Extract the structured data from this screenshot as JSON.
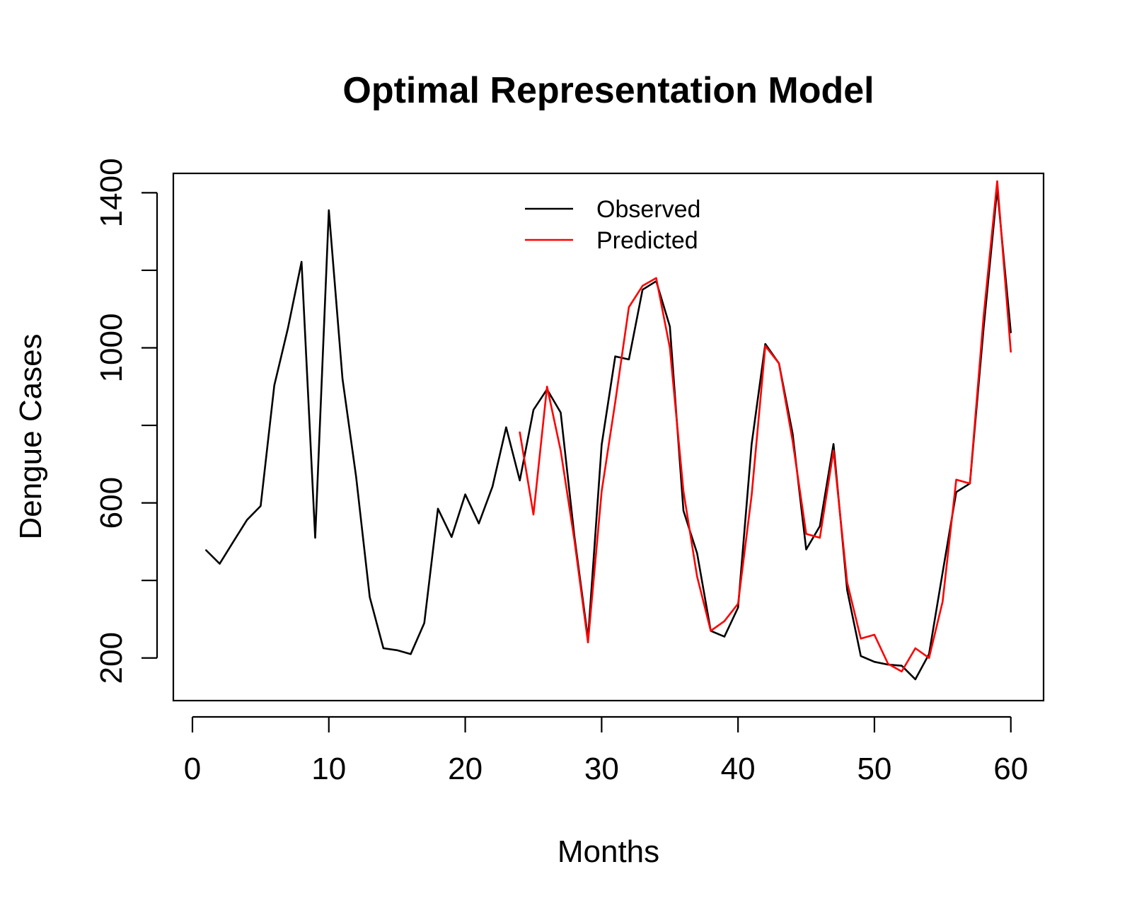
{
  "chart_data": {
    "type": "line",
    "title": "Optimal Representation Model",
    "xlabel": "Months",
    "ylabel": "Dengue Cases",
    "xlim": [
      -1.4,
      62.4
    ],
    "ylim": [
      90,
      1450
    ],
    "x_ticks": [
      0,
      10,
      20,
      30,
      40,
      50,
      60
    ],
    "y_ticks": [
      200,
      600,
      1000,
      1400
    ],
    "y_minor_ticks": [
      200,
      400,
      600,
      800,
      1000,
      1200,
      1400
    ],
    "grid": false,
    "legend_position": "top-center",
    "series": [
      {
        "name": "Observed",
        "color": "#000000",
        "x": [
          1,
          2,
          3,
          4,
          5,
          6,
          7,
          8,
          9,
          10,
          11,
          12,
          13,
          14,
          15,
          16,
          17,
          18,
          19,
          20,
          21,
          22,
          23,
          24,
          25,
          26,
          27,
          28,
          29,
          30,
          31,
          32,
          33,
          34,
          35,
          36,
          37,
          38,
          39,
          40,
          41,
          42,
          43,
          44,
          45,
          46,
          47,
          48,
          49,
          50,
          51,
          52,
          53,
          54,
          55,
          56,
          57,
          58,
          59,
          60
        ],
        "values": [
          478,
          443,
          500,
          556,
          592,
          903,
          1050,
          1222,
          510,
          1355,
          920,
          668,
          357,
          225,
          220,
          210,
          290,
          585,
          512,
          622,
          547,
          642,
          795,
          658,
          840,
          893,
          833,
          515,
          250,
          750,
          978,
          970,
          1150,
          1172,
          1055,
          580,
          470,
          270,
          255,
          330,
          752,
          1010,
          960,
          779,
          480,
          540,
          752,
          375,
          205,
          190,
          183,
          180,
          145,
          210,
          420,
          628,
          650,
          1050,
          1410,
          1040
        ]
      },
      {
        "name": "Predicted",
        "color": "#ff0000",
        "x": [
          24,
          25,
          26,
          27,
          28,
          29,
          30,
          31,
          32,
          33,
          34,
          35,
          36,
          37,
          38,
          39,
          40,
          41,
          42,
          43,
          44,
          45,
          46,
          47,
          48,
          49,
          50,
          51,
          52,
          53,
          54,
          55,
          56,
          57,
          58,
          59,
          60
        ],
        "values": [
          782,
          570,
          900,
          735,
          505,
          240,
          630,
          860,
          1105,
          1160,
          1180,
          1000,
          630,
          410,
          270,
          295,
          340,
          620,
          1005,
          960,
          760,
          520,
          510,
          735,
          395,
          250,
          260,
          185,
          165,
          225,
          200,
          345,
          660,
          650,
          1080,
          1430,
          990
        ]
      }
    ]
  }
}
